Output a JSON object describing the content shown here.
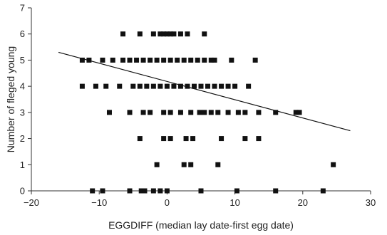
{
  "chart_data": {
    "type": "scatter",
    "title": "",
    "xlabel": "EGGDIFF (median lay date-first egg date)",
    "ylabel": "Number of fleged young",
    "xlim": [
      -20,
      30
    ],
    "ylim": [
      0,
      7
    ],
    "x_ticks": [
      -20,
      -10,
      0,
      10,
      20,
      30
    ],
    "y_ticks": [
      0,
      1,
      2,
      3,
      4,
      5,
      6,
      7
    ],
    "x_tick_labels": [
      "−20",
      "−10",
      "0",
      "10",
      "20",
      "30"
    ],
    "y_tick_labels": [
      "0",
      "1",
      "2",
      "3",
      "4",
      "5",
      "6",
      "7"
    ],
    "grid": false,
    "legend": "none",
    "marker": "square",
    "marker_color": "#111111",
    "line_color": "#111111",
    "series": [
      {
        "points": [
          [
            -11,
            0
          ],
          [
            -9.5,
            0
          ],
          [
            -5.5,
            0
          ],
          [
            -3.8,
            0
          ],
          [
            -3.3,
            0
          ],
          [
            -2,
            0
          ],
          [
            -1,
            0
          ],
          [
            0,
            0
          ],
          [
            5,
            0
          ],
          [
            10.3,
            0
          ],
          [
            16,
            0
          ],
          [
            23,
            0
          ],
          [
            -1.5,
            1
          ],
          [
            2.5,
            1
          ],
          [
            3.5,
            1
          ],
          [
            7.5,
            1
          ],
          [
            24.5,
            1
          ],
          [
            -4,
            2
          ],
          [
            -0.5,
            2
          ],
          [
            0.5,
            2
          ],
          [
            2.8,
            2
          ],
          [
            3.8,
            2
          ],
          [
            8,
            2
          ],
          [
            11.5,
            2
          ],
          [
            13.5,
            2
          ],
          [
            -8.5,
            3
          ],
          [
            -5.5,
            3
          ],
          [
            -3.5,
            3
          ],
          [
            -2.5,
            3
          ],
          [
            -0.5,
            3
          ],
          [
            0.5,
            3
          ],
          [
            2,
            3
          ],
          [
            3.5,
            3
          ],
          [
            4.8,
            3
          ],
          [
            5.5,
            3
          ],
          [
            6.5,
            3
          ],
          [
            7.5,
            3
          ],
          [
            9,
            3
          ],
          [
            10.5,
            3
          ],
          [
            11.5,
            3
          ],
          [
            13.5,
            3
          ],
          [
            16,
            3
          ],
          [
            19,
            3
          ],
          [
            19.5,
            3
          ],
          [
            -12.5,
            4
          ],
          [
            -10.5,
            4
          ],
          [
            -9,
            4
          ],
          [
            -7,
            4
          ],
          [
            -5,
            4
          ],
          [
            -4,
            4
          ],
          [
            -3,
            4
          ],
          [
            -2,
            4
          ],
          [
            -1,
            4
          ],
          [
            0,
            4
          ],
          [
            1,
            4
          ],
          [
            2,
            4
          ],
          [
            3,
            4
          ],
          [
            4,
            4
          ],
          [
            5,
            4
          ],
          [
            6,
            4
          ],
          [
            7,
            4
          ],
          [
            8,
            4
          ],
          [
            9,
            4
          ],
          [
            10,
            4
          ],
          [
            12,
            4
          ],
          [
            -12.5,
            5
          ],
          [
            -11.5,
            5
          ],
          [
            -9.5,
            5
          ],
          [
            -8,
            5
          ],
          [
            -6.5,
            5
          ],
          [
            -5.5,
            5
          ],
          [
            -4.5,
            5
          ],
          [
            -3.5,
            5
          ],
          [
            -2.5,
            5
          ],
          [
            -1.5,
            5
          ],
          [
            -0.5,
            5
          ],
          [
            0.5,
            5
          ],
          [
            1.5,
            5
          ],
          [
            2.5,
            5
          ],
          [
            3.5,
            5
          ],
          [
            4.5,
            5
          ],
          [
            5.5,
            5
          ],
          [
            6.5,
            5
          ],
          [
            7,
            5
          ],
          [
            9.5,
            5
          ],
          [
            13,
            5
          ],
          [
            -6.5,
            6
          ],
          [
            -4,
            6
          ],
          [
            -2,
            6
          ],
          [
            -1,
            6
          ],
          [
            -0.5,
            6
          ],
          [
            0,
            6
          ],
          [
            0.5,
            6
          ],
          [
            1,
            6
          ],
          [
            2,
            6
          ],
          [
            3,
            6
          ],
          [
            5.5,
            6
          ]
        ]
      }
    ],
    "trend_line": {
      "x": [
        -16,
        27
      ],
      "y": [
        5.3,
        2.3
      ]
    }
  }
}
